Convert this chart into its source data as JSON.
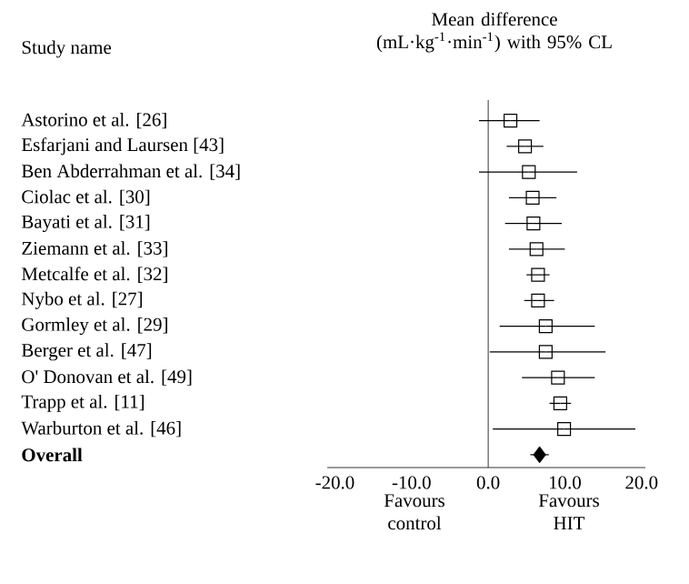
{
  "chart_data": {
    "type": "scatter",
    "orientation": "horizontal",
    "title": "Mean difference (mL·kg$^{-1}$·min$^{-1}$) with 95% CL",
    "categories": [
      "Astorino et al. [26]",
      "Esfarjani and Laursen [43]",
      "Ben Abderrahman et al. [34]",
      "Ciolac et al. [30]",
      "Bayati et al. [31]",
      "Ziemann et al. [33]",
      "Metcalfe et al. [32]",
      "Nybo et al. [27]",
      "Gormley et al. [29]",
      "Berger et al. [47]",
      "O' Donovan et al. [49]",
      "Trapp et al. [11]",
      "Warburton et al. [46]",
      "**Overall**"
    ],
    "series": [
      {
        "color": "#000000",
        "marker": "square",
        "values": [
          2.9,
          4.8,
          5.3,
          5.8,
          5.9,
          6.3,
          6.5,
          6.5,
          7.5,
          7.5,
          9.1,
          9.4,
          9.9,
          null
        ],
        "errors": [
          [
            -1.2,
            6.7
          ],
          [
            2.4,
            7.2
          ],
          [
            -1.2,
            11.6
          ],
          [
            2.7,
            8.9
          ],
          [
            2.2,
            9.6
          ],
          [
            2.7,
            10.0
          ],
          [
            5.0,
            8.0
          ],
          [
            4.7,
            8.6
          ],
          [
            1.5,
            13.9
          ],
          [
            0.2,
            15.3
          ],
          [
            4.4,
            13.9
          ],
          [
            8.0,
            10.8
          ],
          [
            0.6,
            19.2
          ],
          null
        ]
      },
      {
        "color": "#000000",
        "marker": "diamond",
        "values": [
          null,
          null,
          null,
          null,
          null,
          null,
          null,
          null,
          null,
          null,
          null,
          null,
          null,
          6.7
        ],
        "errors": [
          null,
          null,
          null,
          null,
          null,
          null,
          null,
          null,
          null,
          null,
          null,
          null,
          null,
          [
            5.5,
            7.9
          ]
        ]
      }
    ],
    "xlim": [
      -21,
      20.5
    ],
    "xticks": [
      {
        "value": -20,
        "label": "-20.0"
      },
      {
        "value": -10,
        "label": "-10.0"
      },
      {
        "value": 0,
        "label": "0.0"
      },
      {
        "value": 10,
        "label": "10.0"
      },
      {
        "value": 20,
        "label": "20.0"
      }
    ],
    "ref_lines": [
      {
        "axis": "x",
        "value": 0,
        "color": "#000000"
      }
    ],
    "annotations": [
      "Study name",
      "Favours control",
      "Favours HIT"
    ],
    "grid": false
  }
}
